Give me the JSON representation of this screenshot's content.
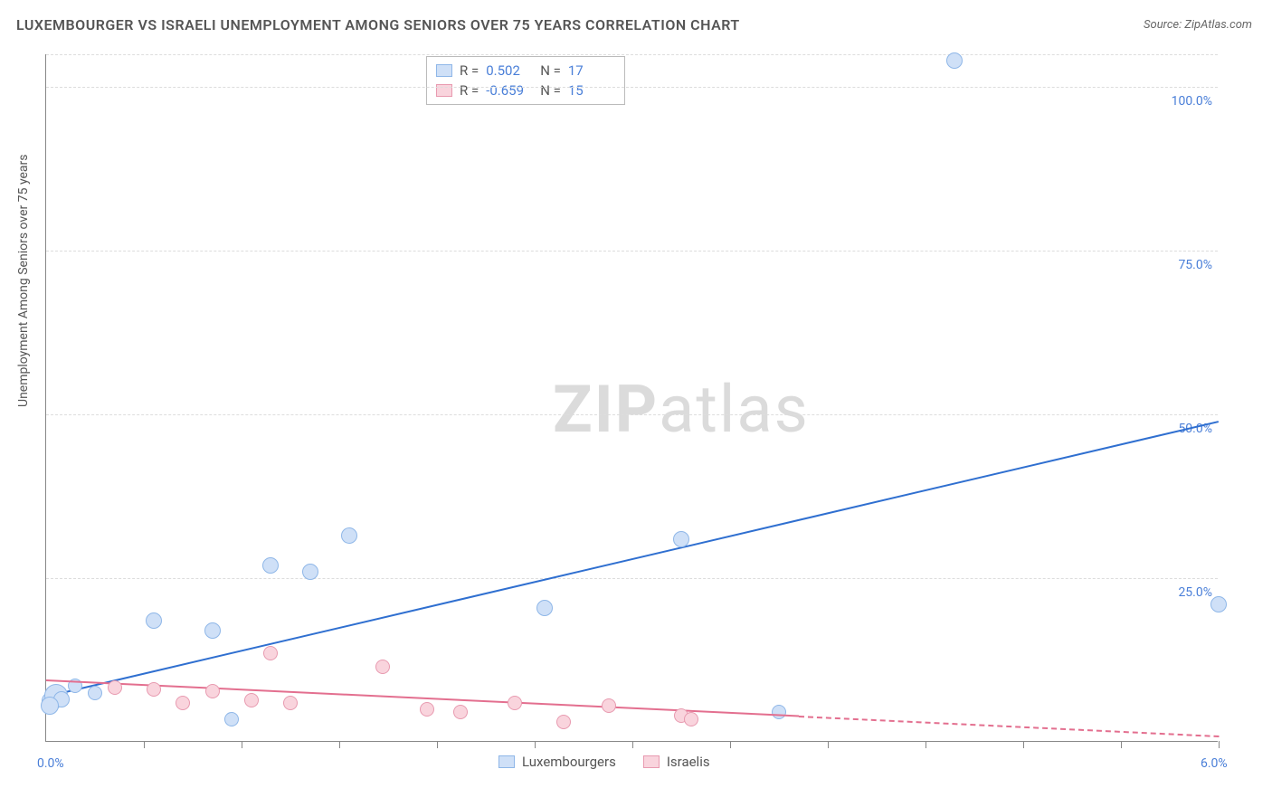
{
  "title": "LUXEMBOURGER VS ISRAELI UNEMPLOYMENT AMONG SENIORS OVER 75 YEARS CORRELATION CHART",
  "source": "Source: ZipAtlas.com",
  "y_axis_label": "Unemployment Among Seniors over 75 years",
  "watermark": {
    "bold": "ZIP",
    "light": "atlas"
  },
  "chart": {
    "type": "scatter",
    "xlim": [
      0,
      6.0
    ],
    "ylim": [
      0,
      105
    ],
    "x_ticks_minor": [
      0.5,
      1.0,
      1.5,
      2.0,
      2.5,
      3.0,
      3.5,
      4.0,
      4.5,
      5.0,
      5.5,
      6.0
    ],
    "x_tick_labels": [
      {
        "x": 0.0,
        "label": "0.0%"
      },
      {
        "x": 6.0,
        "label": "6.0%"
      }
    ],
    "y_gridlines": [
      25,
      50,
      75,
      100,
      105
    ],
    "y_tick_labels": [
      {
        "y": 25,
        "label": "25.0%"
      },
      {
        "y": 50,
        "label": "50.0%"
      },
      {
        "y": 75,
        "label": "75.0%"
      },
      {
        "y": 100,
        "label": "100.0%"
      }
    ],
    "series": [
      {
        "name": "Luxembourgers",
        "color_fill": "#cfe0f7",
        "color_stroke": "#8fb7e8",
        "trend_color": "#2f6fd0",
        "R": "0.502",
        "N": "17",
        "trend": {
          "x1": 0.0,
          "y1": 7.0,
          "x2": 6.0,
          "y2": 49.0,
          "solid_until_x": 6.0
        },
        "points": [
          {
            "x": 0.03,
            "y": 6.2,
            "r": 11
          },
          {
            "x": 0.05,
            "y": 7.0,
            "r": 13
          },
          {
            "x": 0.08,
            "y": 6.5,
            "r": 9
          },
          {
            "x": 0.15,
            "y": 8.5,
            "r": 8
          },
          {
            "x": 0.25,
            "y": 7.5,
            "r": 8
          },
          {
            "x": 0.55,
            "y": 18.5,
            "r": 9
          },
          {
            "x": 0.85,
            "y": 17.0,
            "r": 9
          },
          {
            "x": 0.95,
            "y": 3.5,
            "r": 8
          },
          {
            "x": 1.15,
            "y": 27.0,
            "r": 9
          },
          {
            "x": 1.35,
            "y": 26.0,
            "r": 9
          },
          {
            "x": 1.55,
            "y": 31.5,
            "r": 9
          },
          {
            "x": 2.55,
            "y": 20.5,
            "r": 9
          },
          {
            "x": 3.25,
            "y": 31.0,
            "r": 9
          },
          {
            "x": 3.75,
            "y": 4.5,
            "r": 8
          },
          {
            "x": 4.65,
            "y": 104.0,
            "r": 9
          },
          {
            "x": 6.0,
            "y": 21.0,
            "r": 9
          },
          {
            "x": 0.02,
            "y": 5.5,
            "r": 10
          }
        ]
      },
      {
        "name": "Israelis",
        "color_fill": "#f9d4dd",
        "color_stroke": "#e89ab0",
        "trend_color": "#e36f8f",
        "R": "-0.659",
        "N": "15",
        "trend": {
          "x1": 0.0,
          "y1": 9.5,
          "x2": 6.0,
          "y2": 1.0,
          "solid_until_x": 3.85
        },
        "points": [
          {
            "x": 0.35,
            "y": 8.3,
            "r": 8
          },
          {
            "x": 0.55,
            "y": 8.0,
            "r": 8
          },
          {
            "x": 0.7,
            "y": 6.0,
            "r": 8
          },
          {
            "x": 0.85,
            "y": 7.8,
            "r": 8
          },
          {
            "x": 1.05,
            "y": 6.3,
            "r": 8
          },
          {
            "x": 1.15,
            "y": 13.5,
            "r": 8
          },
          {
            "x": 1.25,
            "y": 6.0,
            "r": 8
          },
          {
            "x": 1.72,
            "y": 11.5,
            "r": 8
          },
          {
            "x": 1.95,
            "y": 5.0,
            "r": 8
          },
          {
            "x": 2.12,
            "y": 4.5,
            "r": 8
          },
          {
            "x": 2.4,
            "y": 6.0,
            "r": 8
          },
          {
            "x": 2.65,
            "y": 3.0,
            "r": 8
          },
          {
            "x": 2.88,
            "y": 5.5,
            "r": 8
          },
          {
            "x": 3.25,
            "y": 4.0,
            "r": 8
          },
          {
            "x": 3.3,
            "y": 3.5,
            "r": 8
          }
        ]
      }
    ]
  },
  "legend_labels": {
    "r": "R =",
    "n": "N ="
  },
  "background_color": "#ffffff",
  "grid_color": "#dddddd",
  "axis_color": "#888888",
  "label_color": "#4a7fd8"
}
